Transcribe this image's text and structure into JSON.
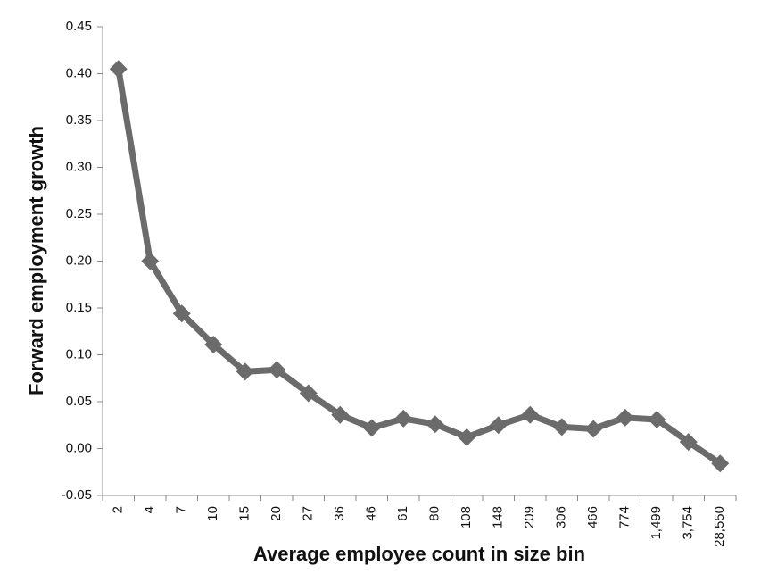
{
  "chart_data": {
    "type": "line",
    "x_label": "Average employee count in size bin",
    "y_label": "Forward employment growth",
    "categories": [
      "2",
      "4",
      "7",
      "10",
      "15",
      "20",
      "27",
      "36",
      "46",
      "61",
      "80",
      "108",
      "148",
      "209",
      "306",
      "466",
      "774",
      "1,499",
      "3,754",
      "28,550"
    ],
    "values": [
      0.405,
      0.2,
      0.144,
      0.111,
      0.082,
      0.084,
      0.059,
      0.036,
      0.022,
      0.032,
      0.026,
      0.012,
      0.025,
      0.036,
      0.023,
      0.021,
      0.033,
      0.031,
      0.007,
      -0.016
    ],
    "color": "#6b6b6b",
    "ylim": [
      -0.05,
      0.45
    ],
    "yticks": [
      -0.05,
      {
        "value": 0,
        "label": "0.00"
      },
      0.05,
      {
        "value": 0.1,
        "label": "0.10"
      },
      0.15,
      {
        "value": 0.2,
        "label": "0.20"
      },
      0.25,
      {
        "value": 0.3,
        "label": "0.30"
      },
      0.35,
      {
        "value": 0.4,
        "label": "0.40"
      },
      0.45
    ],
    "grid": false
  }
}
